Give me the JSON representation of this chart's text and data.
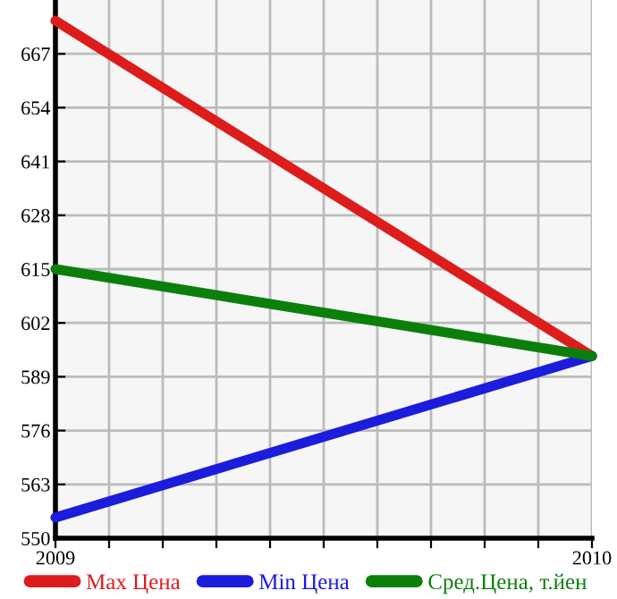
{
  "chart_data": {
    "type": "line",
    "x": [
      2009,
      2010
    ],
    "series": [
      {
        "name": "Max Цена",
        "color": "#dd1c1c",
        "values": [
          675,
          594
        ]
      },
      {
        "name": "Min Цена",
        "color": "#1c1cdd",
        "values": [
          555,
          594
        ]
      },
      {
        "name": "Сред.Цена, т.йен",
        "color": "#0a800a",
        "values": [
          615,
          594
        ]
      }
    ],
    "xlim": [
      2009,
      2010
    ],
    "xticks": [
      2009,
      {
        "value": 2009.1,
        "label": null
      },
      {
        "value": 2009.2,
        "label": null
      },
      {
        "value": 2009.3,
        "label": null
      },
      {
        "value": 2009.4,
        "label": null
      },
      {
        "value": 2009.5,
        "label": null
      },
      {
        "value": 2009.6,
        "label": null
      },
      {
        "value": 2009.7,
        "label": null
      },
      {
        "value": 2009.8,
        "label": null
      },
      {
        "value": 2009.9,
        "label": null
      },
      2010
    ],
    "ylim": [
      550,
      680
    ],
    "yticks": [
      550,
      563,
      576,
      589,
      602,
      615,
      628,
      641,
      654,
      667
    ],
    "grid": true,
    "legend": "bottom",
    "marker": "none",
    "line_style": "solid"
  }
}
